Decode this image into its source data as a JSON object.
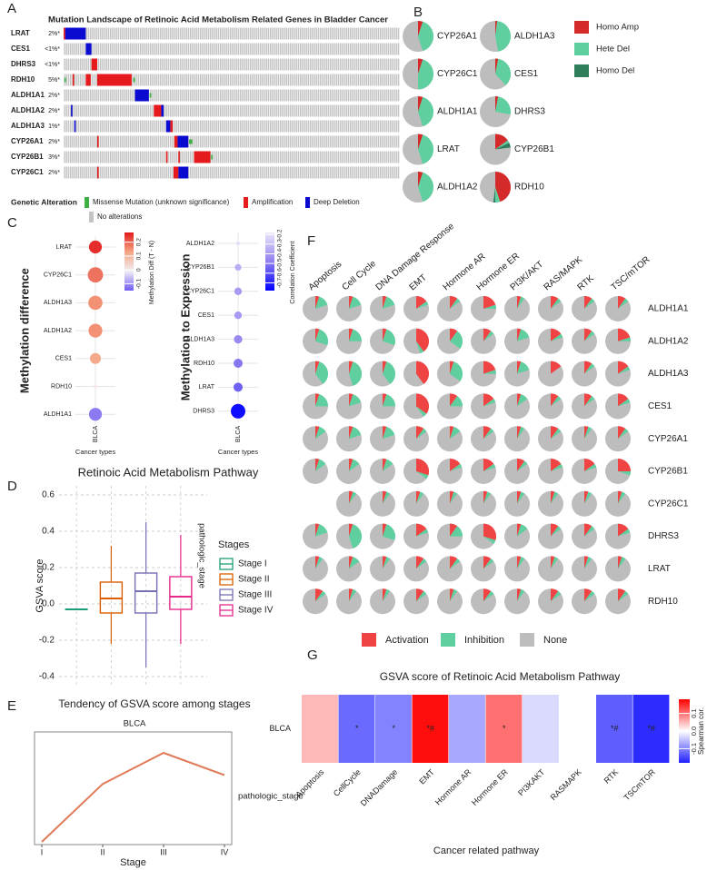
{
  "chart_data": [
    {
      "type": "oncoprint",
      "panel": "A",
      "title": "Mutation Landscape of Retinoic Acid Metabolism Related Genes in Bladder Cancer",
      "xlim": [
        0,
        410
      ],
      "genes": [
        {
          "name": "LRAT",
          "label": "2%*",
          "segments": [
            [],
            [
              [
                0,
                2
              ]
            ],
            [
              [
                2,
                27
              ]
            ]
          ]
        },
        {
          "name": "CES1",
          "label": "<1%*",
          "segments": [
            [],
            [],
            [
              [
                27,
                34
              ]
            ]
          ]
        },
        {
          "name": "DHRS3",
          "label": "<1%*",
          "segments": [
            [],
            [
              [
                34,
                41
              ]
            ],
            []
          ]
        },
        {
          "name": "RDH10",
          "label": "5%*",
          "segments": [
            [
              [
                1,
                2
              ],
              [
                85,
                87
              ]
            ],
            [
              [
                11,
                12
              ],
              [
                27,
                33
              ],
              [
                41,
                83
              ]
            ],
            []
          ]
        },
        {
          "name": "ALDH1A1",
          "label": "2%*",
          "segments": [
            [
              [
                105,
                107
              ]
            ],
            [],
            [
              [
                87,
                104
              ]
            ]
          ]
        },
        {
          "name": "ALDH1A2",
          "label": "2%*",
          "segments": [
            [],
            [
              [
                110,
                119
              ]
            ],
            [
              [
                9,
                10
              ],
              [
                119,
                122
              ]
            ]
          ]
        },
        {
          "name": "ALDH1A3",
          "label": "1%*",
          "segments": [
            [],
            [
              [
                130,
                133
              ]
            ],
            [
              [
                13,
                14
              ],
              [
                125,
                130
              ]
            ]
          ]
        },
        {
          "name": "CYP26A1",
          "label": "2%*",
          "segments": [
            [
              [
                153,
                157
              ]
            ],
            [
              [
                41,
                42
              ],
              [
                135,
                139
              ]
            ],
            [
              [
                139,
                152
              ]
            ]
          ]
        },
        {
          "name": "CYP26B1",
          "label": "3%*",
          "segments": [
            [
              [
                180,
                181
              ]
            ],
            [
              [
                125,
                126
              ],
              [
                140,
                141
              ],
              [
                159,
                179
              ]
            ],
            []
          ]
        },
        {
          "name": "CYP26C1",
          "label": "2%*",
          "segments": [
            [],
            [
              [
                41,
                42
              ],
              [
                134,
                140
              ]
            ],
            [
              [
                140,
                152
              ]
            ]
          ]
        }
      ],
      "legend_title": "Genetic Alteration",
      "legend": [
        {
          "name": "Missense Mutation (unknown significance)",
          "color": "#3cb043"
        },
        {
          "name": "Amplification",
          "color": "#e41a1c"
        },
        {
          "name": "Deep Deletion",
          "color": "#0a0ad0"
        },
        {
          "name": "No alterations",
          "color": "#c4c4c4"
        }
      ]
    },
    {
      "type": "pie",
      "panel": "B",
      "names": [
        "CYP26A1",
        "CYP26C1",
        "ALDH1A1",
        "LRAT",
        "ALDH1A2",
        "ALDH1A3",
        "CES1",
        "DHRS3",
        "CYP26B1",
        "RDH10"
      ],
      "series": [
        {
          "name": "Homo Amp",
          "color": "#d42a2a",
          "values": [
            5,
            5,
            5,
            5,
            5,
            2,
            3,
            3,
            15,
            45
          ]
        },
        {
          "name": "Hete Del",
          "color": "#5fcfa0",
          "values": [
            40,
            45,
            40,
            40,
            40,
            45,
            35,
            25,
            3,
            5
          ]
        },
        {
          "name": "Homo Del",
          "color": "#2e7d5b",
          "values": [
            0,
            0,
            0,
            0,
            0,
            0,
            0,
            0,
            5,
            2
          ]
        }
      ],
      "rest_color": "#bdbdbd"
    },
    {
      "type": "dot",
      "panel": "C",
      "ylabel": "Methylation difference",
      "xlabel": "Cancer types",
      "category": "BLCA",
      "genes": [
        "LRAT",
        "CYP26C1",
        "ALDH1A3",
        "ALDH1A2",
        "CES1",
        "RDH10",
        "ALDH1A1"
      ],
      "values": [
        0.25,
        0.18,
        0.15,
        0.15,
        0.12,
        0.0,
        -0.12
      ],
      "sizes": [
        12,
        18,
        15,
        14,
        8,
        0.3,
        12
      ],
      "colorbar_title": "Methylation Diff (T - N)",
      "clim": [
        -0.15,
        0.27
      ],
      "cticks": [
        -0.1,
        0,
        0.1,
        0.2
      ],
      "colors": [
        "#6f5cf2",
        "#f3eef6",
        "#f4a582",
        "#e31a1c"
      ]
    },
    {
      "type": "dot",
      "ylabel": "Methylation to Expression",
      "xlabel": "Cancer types",
      "category": "BLCA",
      "genes": [
        "ALDH1A2",
        "CYP26B1",
        "CYP26C1",
        "CES1",
        "ALDH1A3",
        "RDH10",
        "LRAT",
        "DHRS3"
      ],
      "values": [
        -0.2,
        -0.35,
        -0.4,
        -0.4,
        -0.45,
        -0.5,
        -0.55,
        -0.75
      ],
      "sizes": [
        0.3,
        2,
        3,
        3,
        4,
        5,
        5,
        16
      ],
      "colorbar_title": "Correlation Coefficient",
      "clim": [
        -0.78,
        -0.18
      ],
      "cticks": [
        -0.7,
        -0.6,
        -0.5,
        -0.4,
        -0.3,
        -0.2
      ],
      "colors": [
        "#0000ff",
        "#8f7ff0",
        "#ece6fb"
      ]
    },
    {
      "type": "box",
      "panel": "D",
      "title": "Retinoic Acid Metabolism Pathway",
      "ylabel": "GSVA score",
      "strip": "pathologic_stage",
      "legend_title": "Stages",
      "ylim": [
        -0.45,
        0.65
      ],
      "yticks": [
        -0.4,
        -0.2,
        {
          "value": 0,
          "label": "0.0"
        },
        0.2,
        0.4,
        0.6
      ],
      "series": [
        {
          "name": "Stage I",
          "color": "#1b9e77",
          "min": -0.03,
          "q1": -0.03,
          "median": -0.03,
          "q3": -0.03,
          "max": -0.03
        },
        {
          "name": "Stage II",
          "color": "#d95f02",
          "min": -0.22,
          "q1": -0.05,
          "median": 0.03,
          "q3": 0.12,
          "max": 0.32
        },
        {
          "name": "Stage III",
          "color": "#7570b3",
          "min": -0.35,
          "q1": -0.05,
          "median": 0.07,
          "q3": 0.17,
          "max": 0.45
        },
        {
          "name": "Stage IV",
          "color": "#e7298a",
          "min": -0.22,
          "q1": -0.03,
          "median": 0.04,
          "q3": 0.15,
          "max": 0.38
        }
      ]
    },
    {
      "type": "line",
      "panel": "E",
      "title": "Tendency of GSVA score among stages",
      "subtitle": "BLCA",
      "xlabel": "Stage",
      "strip": "pathologic_stage",
      "categories": [
        "I",
        "II",
        "III",
        "IV"
      ],
      "values": [
        -0.03,
        0.035,
        0.07,
        0.045
      ],
      "ylim": [
        -0.03,
        0.07
      ],
      "color": "#e07b5a"
    },
    {
      "type": "pie_grid",
      "panel": "F",
      "pathways": [
        "Apoptosis",
        "Cell Cycle",
        "DNA Damage Response",
        "EMT",
        "Hormone AR",
        "Hormone ER",
        "PI3K/AKT",
        "RAS/MAPK",
        "RTK",
        "TSC/mTOR"
      ],
      "genes": [
        "ALDH1A1",
        "ALDH1A2",
        "ALDH1A3",
        "CES1",
        "CYP26A1",
        "CYP26B1",
        "CYP26C1",
        "DHRS3",
        "LRAT",
        "RDH10"
      ],
      "series": [
        {
          "name": "Activation",
          "color": "#f04444",
          "values": [
            [
              5,
              5,
              5,
              15,
              10,
              20,
              5,
              10,
              10,
              10
            ],
            [
              5,
              5,
              5,
              40,
              10,
              10,
              5,
              15,
              10,
              20
            ],
            [
              5,
              5,
              5,
              40,
              5,
              20,
              5,
              15,
              10,
              15
            ],
            [
              5,
              5,
              5,
              35,
              10,
              15,
              5,
              10,
              10,
              15
            ],
            [
              5,
              5,
              5,
              10,
              5,
              10,
              5,
              10,
              5,
              10
            ],
            [
              5,
              5,
              5,
              30,
              15,
              15,
              10,
              15,
              15,
              25
            ],
            [
              null,
              5,
              5,
              5,
              5,
              5,
              5,
              5,
              5,
              5
            ],
            [
              5,
              5,
              5,
              15,
              10,
              30,
              5,
              10,
              10,
              15
            ],
            [
              5,
              5,
              5,
              10,
              10,
              10,
              5,
              5,
              5,
              5
            ],
            [
              10,
              5,
              5,
              10,
              5,
              10,
              5,
              10,
              10,
              10
            ]
          ]
        },
        {
          "name": "Inhibition",
          "color": "#5fcfa0",
          "values": [
            [
              15,
              15,
              15,
              5,
              5,
              5,
              5,
              5,
              5,
              5
            ],
            [
              25,
              20,
              25,
              5,
              25,
              5,
              15,
              5,
              5,
              5
            ],
            [
              35,
              40,
              35,
              0,
              30,
              5,
              15,
              0,
              5,
              5
            ],
            [
              20,
              15,
              20,
              5,
              15,
              5,
              10,
              5,
              5,
              5
            ],
            [
              10,
              15,
              15,
              5,
              10,
              5,
              5,
              5,
              5,
              5
            ],
            [
              10,
              10,
              10,
              5,
              5,
              5,
              5,
              5,
              5,
              5
            ],
            [
              null,
              5,
              5,
              5,
              5,
              5,
              5,
              5,
              5,
              5
            ],
            [
              15,
              40,
              25,
              5,
              15,
              5,
              10,
              5,
              5,
              5
            ],
            [
              5,
              10,
              5,
              5,
              5,
              5,
              5,
              5,
              5,
              5
            ],
            [
              5,
              5,
              5,
              5,
              5,
              5,
              5,
              5,
              5,
              5
            ]
          ]
        },
        {
          "name": "None",
          "color": "#bdbdbd"
        }
      ]
    },
    {
      "type": "heatmap",
      "panel": "G",
      "title": "GSVA score of Retinoic Acid Metabolism Pathway",
      "xlabel": "Cancer related pathway",
      "row": "BLCA",
      "categories": [
        "Apoptosis",
        "CellCycle",
        "DNADamage",
        "EMT",
        "Hormone AR",
        "Hormone ER",
        "PI3KAKT",
        "RASMAPK",
        "RTK",
        "TSCmTOR"
      ],
      "values": [
        0.05,
        -0.12,
        -0.1,
        0.17,
        -0.07,
        0.1,
        -0.03,
        0.0,
        -0.13,
        -0.17
      ],
      "annotations": [
        null,
        "*",
        "*",
        "*#",
        null,
        "*",
        null,
        null,
        "*#",
        "*#"
      ],
      "clim": [
        -0.18,
        0.18
      ],
      "cticks": [
        -0.1,
        {
          "value": 0,
          "label": "0.0"
        },
        0.1
      ],
      "colorbar_title": "Spearman cor.",
      "colors": [
        "#2020ff",
        "#ffffff",
        "#ff0000"
      ]
    }
  ]
}
